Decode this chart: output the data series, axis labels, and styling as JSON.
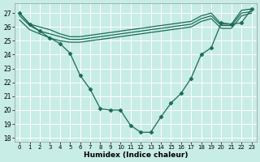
{
  "xlabel": "Humidex (Indice chaleur)",
  "bg_color": "#c8ece6",
  "grid_color": "#ffffff",
  "line_color": "#1a6b5a",
  "xlim": [
    -0.5,
    23.5
  ],
  "ylim": [
    17.7,
    27.7
  ],
  "yticks": [
    18,
    19,
    20,
    21,
    22,
    23,
    24,
    25,
    26,
    27
  ],
  "xticks": [
    0,
    1,
    2,
    3,
    4,
    5,
    6,
    7,
    8,
    9,
    10,
    11,
    12,
    13,
    14,
    15,
    16,
    17,
    18,
    19,
    20,
    21,
    22,
    23
  ],
  "series": [
    {
      "x": [
        0,
        1,
        2,
        3,
        4,
        5,
        6,
        7,
        8,
        9,
        10,
        11,
        12,
        13,
        14,
        15,
        16,
        17,
        18,
        19,
        20,
        21,
        22,
        23
      ],
      "y": [
        27.0,
        26.2,
        26.0,
        25.8,
        25.5,
        25.3,
        25.3,
        25.4,
        25.5,
        25.6,
        25.7,
        25.8,
        25.9,
        26.0,
        26.1,
        26.2,
        26.3,
        26.4,
        26.8,
        27.0,
        26.2,
        26.2,
        27.2,
        27.3
      ],
      "marker": null,
      "lw": 0.9
    },
    {
      "x": [
        0,
        1,
        2,
        3,
        4,
        5,
        6,
        7,
        8,
        9,
        10,
        11,
        12,
        13,
        14,
        15,
        16,
        17,
        18,
        19,
        20,
        21,
        22,
        23
      ],
      "y": [
        26.8,
        26.1,
        25.7,
        25.5,
        25.3,
        25.1,
        25.1,
        25.2,
        25.3,
        25.4,
        25.5,
        25.6,
        25.7,
        25.8,
        25.9,
        26.0,
        26.1,
        26.2,
        26.6,
        26.8,
        26.1,
        26.1,
        27.0,
        27.1
      ],
      "marker": null,
      "lw": 0.9
    },
    {
      "x": [
        0,
        1,
        2,
        3,
        4,
        5,
        6,
        7,
        8,
        9,
        10,
        11,
        12,
        13,
        14,
        15,
        16,
        17,
        18,
        19,
        20,
        21,
        22,
        23
      ],
      "y": [
        26.5,
        25.8,
        25.5,
        25.2,
        25.0,
        24.9,
        24.9,
        25.0,
        25.1,
        25.2,
        25.3,
        25.4,
        25.5,
        25.6,
        25.7,
        25.8,
        25.9,
        26.0,
        26.4,
        26.6,
        25.9,
        25.9,
        26.8,
        27.0
      ],
      "marker": null,
      "lw": 0.9
    },
    {
      "x": [
        0,
        1,
        2,
        3,
        4,
        5,
        6,
        7,
        8,
        9,
        10,
        11,
        12,
        13,
        14,
        15,
        16,
        17,
        18,
        19,
        20,
        21,
        22,
        23
      ],
      "y": [
        27.0,
        26.2,
        25.7,
        25.2,
        24.8,
        24.1,
        22.5,
        21.5,
        20.1,
        20.0,
        20.0,
        18.9,
        18.4,
        18.4,
        19.5,
        20.5,
        21.2,
        22.3,
        24.0,
        24.5,
        26.3,
        26.2,
        26.3,
        27.3
      ],
      "marker": "D",
      "markersize": 2.5,
      "lw": 0.9
    }
  ]
}
